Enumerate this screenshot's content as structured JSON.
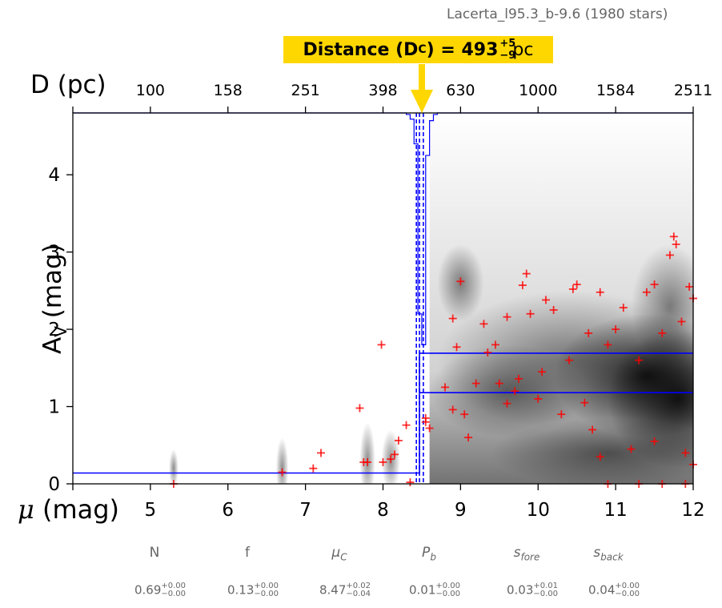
{
  "region_title": "Lacerta_l95.3_b-9.6 (1980 stars)",
  "distance_banner": {
    "label": "Distance (D",
    "sub": "C",
    "eq": ") = 493",
    "plus": "+5",
    "minus": "−9",
    "unit": " pc"
  },
  "colors": {
    "points": "#ff0000",
    "model": "#0000ff",
    "banner": "#ffd700",
    "arrow": "#ffd700",
    "annotation_text": "#666666"
  },
  "chart_data": {
    "type": "scatter",
    "xlabel": "μ (mag)",
    "ylabel": "A_V (mag)",
    "top_xlabel": "D (pc)",
    "xlim": [
      4,
      12
    ],
    "ylim": [
      0,
      4.8
    ],
    "x_ticks": [
      5,
      6,
      7,
      8,
      9,
      10,
      11,
      12
    ],
    "y_ticks": [
      0,
      1,
      2,
      3,
      4
    ],
    "top_ticks": [
      "100",
      "158",
      "251",
      "398",
      "630",
      "1000",
      "1584",
      "2511"
    ],
    "top_tick_positions_mu": [
      5,
      6,
      7,
      8,
      9,
      10,
      11,
      12
    ],
    "background": "grayscale density map of stars (darker = higher density)",
    "marker": "+",
    "points": [
      [
        5.3,
        0.0
      ],
      [
        7.1,
        0.2
      ],
      [
        7.2,
        0.4
      ],
      [
        6.7,
        0.15
      ],
      [
        7.7,
        0.98
      ],
      [
        7.75,
        0.28
      ],
      [
        7.8,
        0.28
      ],
      [
        7.98,
        1.8
      ],
      [
        8.0,
        0.28
      ],
      [
        8.1,
        0.32
      ],
      [
        8.15,
        0.38
      ],
      [
        8.2,
        0.56
      ],
      [
        8.3,
        0.76
      ],
      [
        8.35,
        0.02
      ],
      [
        8.55,
        0.8
      ],
      [
        8.6,
        0.72
      ],
      [
        8.55,
        0.85
      ],
      [
        8.8,
        1.25
      ],
      [
        8.9,
        2.14
      ],
      [
        8.95,
        1.77
      ],
      [
        9.0,
        2.62
      ],
      [
        8.9,
        0.96
      ],
      [
        9.05,
        0.9
      ],
      [
        9.1,
        0.6
      ],
      [
        9.2,
        1.3
      ],
      [
        9.3,
        2.07
      ],
      [
        9.35,
        1.7
      ],
      [
        9.45,
        1.8
      ],
      [
        9.6,
        2.16
      ],
      [
        9.6,
        1.04
      ],
      [
        9.75,
        1.36
      ],
      [
        9.8,
        2.57
      ],
      [
        9.85,
        2.72
      ],
      [
        9.9,
        2.2
      ],
      [
        10.05,
        1.45
      ],
      [
        10.1,
        2.38
      ],
      [
        10.2,
        2.25
      ],
      [
        10.4,
        1.6
      ],
      [
        10.45,
        2.52
      ],
      [
        10.5,
        2.58
      ],
      [
        10.6,
        1.05
      ],
      [
        10.65,
        1.95
      ],
      [
        10.8,
        2.48
      ],
      [
        10.9,
        1.8
      ],
      [
        11.0,
        2.0
      ],
      [
        11.1,
        2.28
      ],
      [
        11.3,
        1.6
      ],
      [
        11.4,
        2.48
      ],
      [
        11.5,
        2.58
      ],
      [
        11.6,
        1.95
      ],
      [
        11.7,
        2.96
      ],
      [
        11.75,
        3.2
      ],
      [
        11.78,
        3.1
      ],
      [
        11.85,
        2.1
      ],
      [
        11.95,
        2.55
      ],
      [
        12.0,
        2.4
      ],
      [
        9.5,
        1.3
      ],
      [
        9.7,
        1.2
      ],
      [
        10.0,
        1.1
      ],
      [
        10.3,
        0.9
      ],
      [
        10.7,
        0.7
      ],
      [
        10.8,
        0.35
      ],
      [
        11.2,
        0.45
      ],
      [
        11.5,
        0.55
      ],
      [
        11.9,
        0.4
      ],
      [
        12.0,
        0.25
      ],
      [
        10.9,
        0.0
      ],
      [
        11.3,
        0.0
      ],
      [
        11.6,
        0.0
      ],
      [
        11.9,
        0.0
      ]
    ],
    "model_profile": {
      "name": "extinction model",
      "mu_C": 8.47,
      "A_fore": 0.14,
      "A_back_levels": [
        1.18,
        1.69
      ]
    },
    "distance_histogram": {
      "mu_C": 8.47,
      "bins_mu": [
        8.3,
        8.35,
        8.4,
        8.45,
        8.5,
        8.55,
        8.6,
        8.65
      ],
      "heights_mag": [
        0.02,
        0.08,
        0.4,
        2.6,
        3.0,
        0.55,
        0.1,
        0.02
      ]
    },
    "dashed_vlines_mu": [
      8.43,
      8.47,
      8.52
    ]
  },
  "parameters": [
    {
      "name": "N",
      "value": "0.69",
      "plus": "+0.00",
      "minus": "−0.00"
    },
    {
      "name": "f",
      "value": "0.13",
      "plus": "+0.00",
      "minus": "−0.00"
    },
    {
      "name": "μ",
      "sub": "C",
      "value": "8.47",
      "plus": "+0.02",
      "minus": "−0.04"
    },
    {
      "name": "P",
      "sub": "b",
      "value": "0.01",
      "plus": "+0.00",
      "minus": "−0.00"
    },
    {
      "name": "s",
      "sub": "fore",
      "value": "0.03",
      "plus": "+0.01",
      "minus": "−0.00"
    },
    {
      "name": "s",
      "sub": "back",
      "value": "0.04",
      "plus": "+0.00",
      "minus": "−0.00"
    }
  ]
}
